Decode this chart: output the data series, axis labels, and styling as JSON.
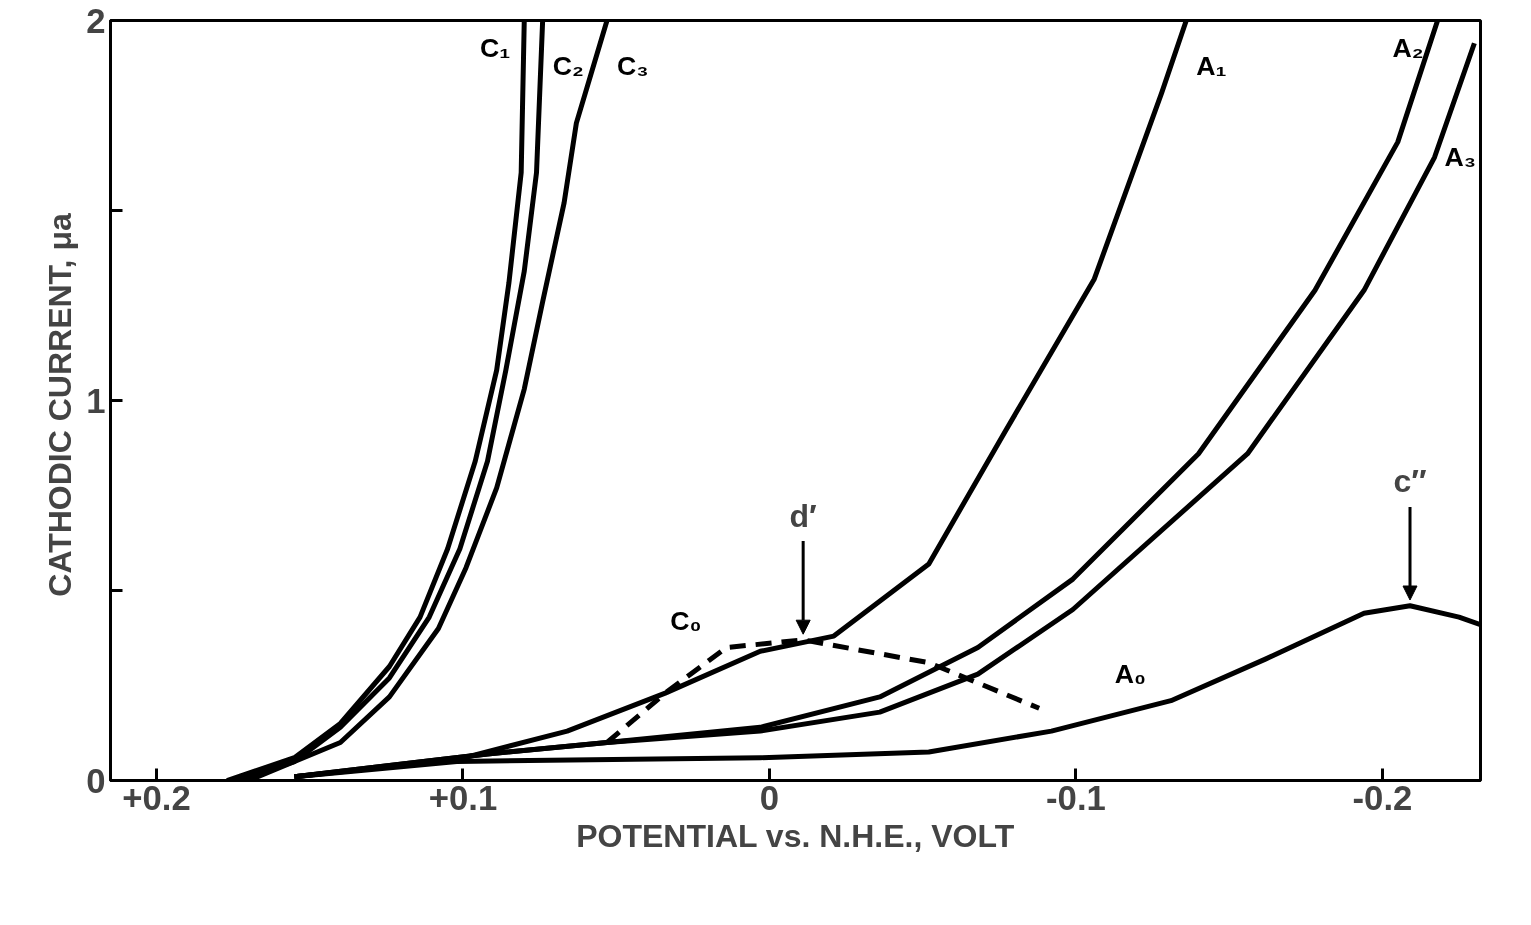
{
  "chart_data": {
    "type": "line",
    "xlabel": "POTENTIAL vs. N.H.E., VOLT",
    "ylabel": "CATHODIC  CURRENT, μa",
    "xlim": [
      0.215,
      -0.232
    ],
    "ylim": [
      0,
      2
    ],
    "xticks": [
      {
        "value": 0.2,
        "label": "+0.2"
      },
      {
        "value": 0.1,
        "label": "+0.1"
      },
      0,
      -0.1,
      -0.2
    ],
    "yticks": [
      0,
      {
        "value": 0.5,
        "label": null
      },
      1,
      {
        "value": 1.5,
        "label": null
      },
      2
    ],
    "grid": false,
    "line_style": "solid",
    "marker": "none",
    "series": [
      {
        "name": "C₁",
        "color": "#000000",
        "x": [
          0.177,
          0.155,
          0.14,
          0.124,
          0.114,
          0.105,
          0.096,
          0.089,
          0.085,
          0.081,
          0.08
        ],
        "values": [
          0,
          0.06,
          0.15,
          0.3,
          0.43,
          0.61,
          0.84,
          1.08,
          1.31,
          1.6,
          2.0
        ]
      },
      {
        "name": "C₂",
        "color": "#000000",
        "x": [
          0.174,
          0.155,
          0.14,
          0.124,
          0.111,
          0.101,
          0.092,
          0.086,
          0.08,
          0.076,
          0.074
        ],
        "values": [
          0,
          0.05,
          0.14,
          0.27,
          0.43,
          0.61,
          0.84,
          1.08,
          1.34,
          1.6,
          2.0
        ]
      },
      {
        "name": "C₃",
        "color": "#000000",
        "x": [
          0.17,
          0.14,
          0.124,
          0.108,
          0.099,
          0.089,
          0.08,
          0.074,
          0.067,
          0.063,
          0.053
        ],
        "values": [
          0,
          0.1,
          0.22,
          0.4,
          0.56,
          0.77,
          1.03,
          1.26,
          1.52,
          1.73,
          2.0
        ]
      },
      {
        "name": "A₁",
        "color": "#000000",
        "x": [
          0.155,
          0.102,
          0.066,
          0.034,
          0.003,
          -0.021,
          -0.052,
          -0.077,
          -0.106,
          -0.128,
          -0.136
        ],
        "values": [
          0.01,
          0.055,
          0.13,
          0.23,
          0.34,
          0.38,
          0.57,
          0.92,
          1.32,
          1.81,
          2.0
        ]
      },
      {
        "name": "A₂",
        "color": "#000000",
        "x": [
          0.155,
          0.092,
          0.053,
          0.003,
          -0.036,
          -0.068,
          -0.099,
          -0.14,
          -0.178,
          -0.205,
          -0.218
        ],
        "values": [
          0.01,
          0.07,
          0.1,
          0.14,
          0.22,
          0.35,
          0.53,
          0.86,
          1.29,
          1.68,
          2.0
        ]
      },
      {
        "name": "A₃",
        "color": "#000000",
        "x": [
          0.155,
          0.092,
          0.053,
          0.003,
          -0.036,
          -0.068,
          -0.099,
          -0.156,
          -0.194,
          -0.217,
          -0.23
        ],
        "values": [
          0.01,
          0.07,
          0.1,
          0.13,
          0.18,
          0.28,
          0.45,
          0.86,
          1.29,
          1.64,
          1.94
        ]
      },
      {
        "name": "A₀",
        "color": "#000000",
        "x": [
          0.155,
          0.102,
          0.003,
          -0.052,
          -0.092,
          -0.131,
          -0.162,
          -0.194,
          -0.209,
          -0.225,
          -0.232
        ],
        "values": [
          0.01,
          0.05,
          0.06,
          0.075,
          0.13,
          0.21,
          0.32,
          0.44,
          0.46,
          0.43,
          0.41
        ]
      },
      {
        "name": "C₀",
        "color": "#000000",
        "line_style": "dashed",
        "x": [
          0.053,
          0.034,
          0.014,
          -0.011,
          -0.052,
          -0.088
        ],
        "values": [
          0.1,
          0.23,
          0.35,
          0.37,
          0.31,
          0.19
        ]
      }
    ],
    "annotations": [
      {
        "text": "d′",
        "x": -0.011,
        "y": 0.37
      },
      {
        "text": "c″",
        "x": -0.209,
        "y": 0.46
      }
    ]
  }
}
